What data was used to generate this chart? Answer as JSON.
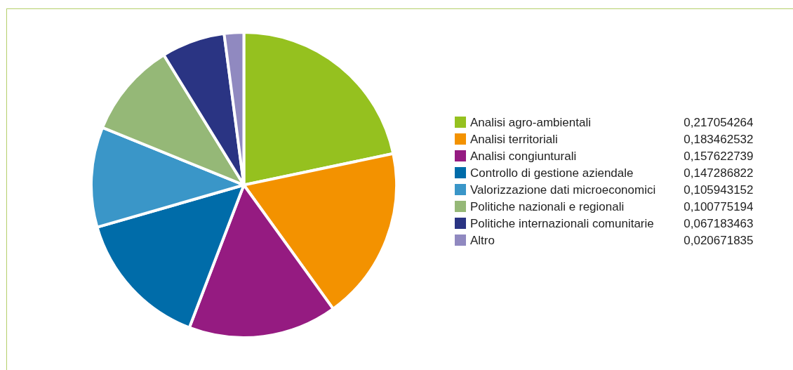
{
  "chart_data": {
    "type": "pie",
    "categories": [
      "Analisi agro-ambientali",
      "Analisi territoriali",
      "Analisi congiunturali",
      "Controllo di gestione aziendale",
      "Valorizzazione dati microeconomici",
      "Politiche nazionali e regionali",
      "Politiche internazionali comunitarie",
      "Altro"
    ],
    "values": [
      0.217054264,
      0.183462532,
      0.157622739,
      0.147286822,
      0.105943152,
      0.100775194,
      0.067183463,
      0.020671835
    ],
    "value_labels": [
      "0,217054264",
      "0,183462532",
      "0,157622739",
      "0,147286822",
      "0,105943152",
      "0,100775194",
      "0,067183463",
      "0,020671835"
    ],
    "colors": [
      "#95c11f",
      "#f39200",
      "#951b81",
      "#006ca9",
      "#3a96c8",
      "#95b877",
      "#2a3483",
      "#9089c0"
    ],
    "legend": "right"
  }
}
